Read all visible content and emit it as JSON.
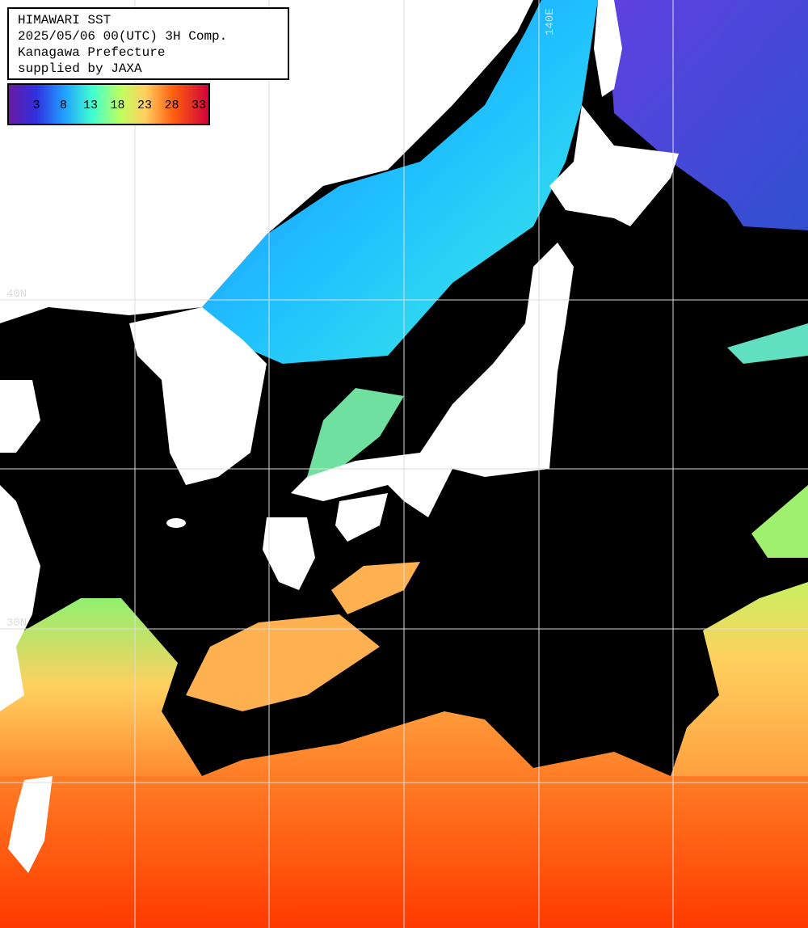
{
  "header": {
    "lines": [
      "HIMAWARI SST",
      "2025/05/06 00(UTC) 3H Comp.",
      "Kanagawa Prefecture",
      "supplied by JAXA"
    ]
  },
  "colorbar": {
    "labels": [
      3,
      8,
      13,
      18,
      23,
      28,
      33
    ]
  },
  "grid_labels": {
    "lon": [
      "140E"
    ],
    "lat": [
      "40N",
      "30N"
    ]
  }
}
